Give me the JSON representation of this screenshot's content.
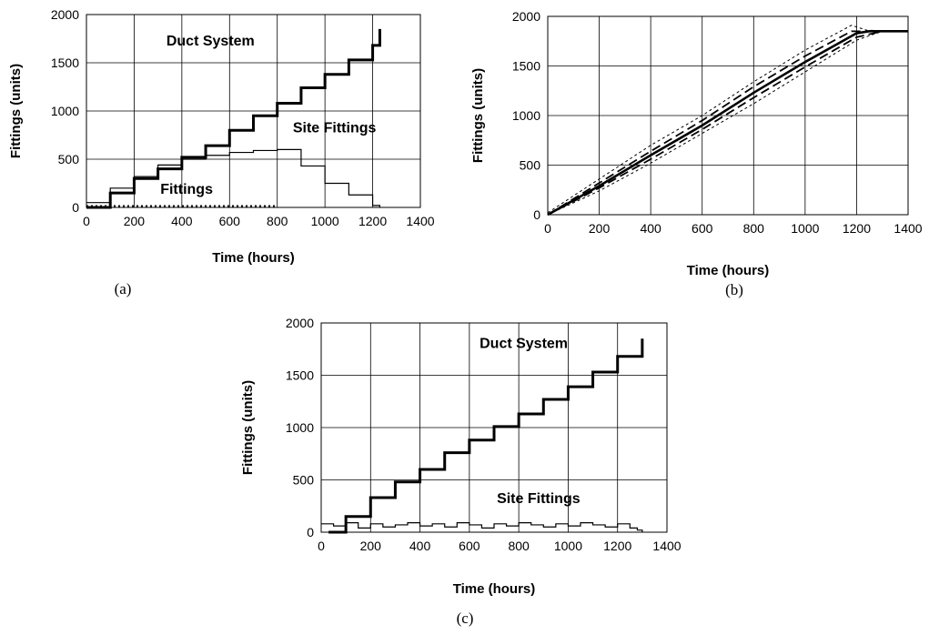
{
  "chart_data": [
    {
      "id": "a",
      "type": "line",
      "caption": "(a)",
      "xlabel": "Time (hours)",
      "ylabel": "Fittings (units)",
      "xlim": [
        0,
        1400
      ],
      "ylim": [
        0,
        2000
      ],
      "xticks": [
        0,
        200,
        400,
        600,
        800,
        1000,
        1200,
        1400
      ],
      "yticks": [
        0,
        500,
        1000,
        1500,
        2000
      ],
      "grid": true,
      "annotations": [
        {
          "text": "Duct System",
          "x": 520,
          "y": 1680
        },
        {
          "text": "Site Fittings",
          "x": 1040,
          "y": 780
        },
        {
          "text": "Fittings",
          "x": 420,
          "y": 140
        }
      ],
      "series": [
        {
          "style": "thick-step",
          "x": [
            0,
            100,
            200,
            300,
            400,
            500,
            600,
            700,
            800,
            900,
            1000,
            1100,
            1200,
            1230
          ],
          "y": [
            0,
            150,
            300,
            400,
            520,
            640,
            800,
            950,
            1080,
            1240,
            1380,
            1530,
            1680,
            1850
          ]
        },
        {
          "style": "thin-step",
          "x": [
            0,
            100,
            200,
            300,
            400,
            500,
            600,
            700,
            800,
            900,
            1000,
            1100,
            1200,
            1230
          ],
          "y": [
            50,
            200,
            320,
            440,
            500,
            540,
            570,
            590,
            600,
            430,
            250,
            130,
            20,
            0
          ]
        },
        {
          "style": "dotted-markers",
          "x": [
            0,
            100,
            200,
            300,
            400,
            500,
            600,
            700,
            800
          ],
          "y": [
            10,
            10,
            10,
            10,
            10,
            10,
            10,
            10,
            10
          ]
        }
      ]
    },
    {
      "id": "b",
      "type": "line",
      "caption": "(b)",
      "xlabel": "Time (hours)",
      "ylabel": "Fittings (units)",
      "xlim": [
        0,
        1400
      ],
      "ylim": [
        0,
        2000
      ],
      "xticks": [
        0,
        200,
        400,
        600,
        800,
        1000,
        1200,
        1400
      ],
      "yticks": [
        0,
        500,
        1000,
        1500,
        2000
      ],
      "grid": true,
      "series": [
        {
          "style": "solid-thick",
          "x": [
            0,
            200,
            400,
            600,
            800,
            1000,
            1200,
            1250,
            1400
          ],
          "y": [
            0,
            290,
            600,
            900,
            1230,
            1540,
            1830,
            1850,
            1850
          ]
        },
        {
          "style": "long-dash",
          "x": [
            0,
            200,
            400,
            600,
            800,
            1000,
            1180,
            1250,
            1400
          ],
          "y": [
            0,
            320,
            640,
            950,
            1290,
            1600,
            1850,
            1850,
            1850
          ]
        },
        {
          "style": "long-dash",
          "x": [
            0,
            200,
            400,
            600,
            800,
            1000,
            1200,
            1300,
            1400
          ],
          "y": [
            0,
            270,
            560,
            860,
            1180,
            1490,
            1790,
            1850,
            1850
          ]
        },
        {
          "style": "short-dash",
          "x": [
            0,
            200,
            400,
            600,
            800,
            1000,
            1180,
            1240,
            1400
          ],
          "y": [
            20,
            360,
            700,
            1000,
            1340,
            1660,
            1910,
            1860,
            1850
          ]
        },
        {
          "style": "short-dash",
          "x": [
            0,
            200,
            400,
            600,
            800,
            1000,
            1200,
            1300,
            1400
          ],
          "y": [
            0,
            240,
            520,
            820,
            1120,
            1440,
            1760,
            1850,
            1850
          ]
        }
      ]
    },
    {
      "id": "c",
      "type": "line",
      "caption": "(c)",
      "xlabel": "Time (hours)",
      "ylabel": "Fittings (units)",
      "xlim": [
        0,
        1400
      ],
      "ylim": [
        0,
        2000
      ],
      "xticks": [
        0,
        200,
        400,
        600,
        800,
        1000,
        1200,
        1400
      ],
      "yticks": [
        0,
        500,
        1000,
        1500,
        2000
      ],
      "grid": true,
      "annotations": [
        {
          "text": "Duct System",
          "x": 820,
          "y": 1760
        },
        {
          "text": "Site Fittings",
          "x": 880,
          "y": 280
        }
      ],
      "series": [
        {
          "style": "thick-step",
          "x": [
            30,
            100,
            200,
            300,
            400,
            500,
            600,
            700,
            800,
            900,
            1000,
            1100,
            1200,
            1300
          ],
          "y": [
            0,
            150,
            330,
            480,
            600,
            760,
            880,
            1010,
            1130,
            1270,
            1390,
            1530,
            1680,
            1850
          ]
        },
        {
          "style": "thin-jagged",
          "x": [
            0,
            50,
            100,
            150,
            200,
            250,
            300,
            350,
            400,
            450,
            500,
            550,
            600,
            650,
            700,
            750,
            800,
            850,
            900,
            950,
            1000,
            1050,
            1100,
            1150,
            1200,
            1250,
            1280,
            1300
          ],
          "y": [
            80,
            60,
            90,
            40,
            80,
            50,
            70,
            90,
            60,
            80,
            50,
            90,
            70,
            40,
            80,
            60,
            90,
            70,
            50,
            80,
            60,
            90,
            70,
            50,
            80,
            40,
            20,
            0
          ]
        }
      ]
    }
  ]
}
